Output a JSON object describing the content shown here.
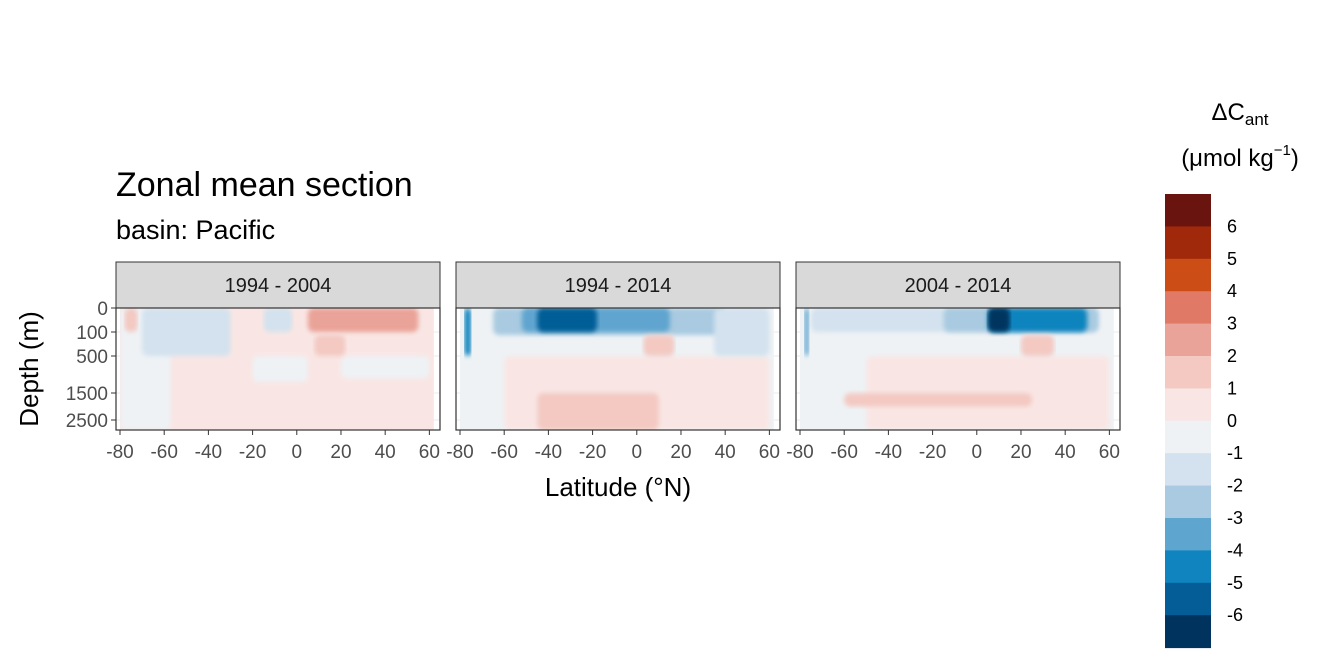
{
  "figure": {
    "title": "Zonal mean section",
    "subtitle": "basin: Pacific"
  },
  "legend": {
    "title_main": "ΔC",
    "title_sub": "ant",
    "units_main": "(μmol kg",
    "units_sup": "−1",
    "units_close": ")",
    "colors": [
      "#69140e",
      "#a1290b",
      "#cc4d16",
      "#e07a66",
      "#eaa398",
      "#f3c9c2",
      "#f9e6e4",
      "#eef2f5",
      "#d3e2ee",
      "#a9cae0",
      "#5ea5cf",
      "#0f84be",
      "#045d96",
      "#00345e"
    ],
    "tick_labels": [
      "6",
      "5",
      "4",
      "3",
      "2",
      "1",
      "0",
      "-1",
      "-2",
      "-3",
      "-4",
      "-5",
      "-6"
    ]
  },
  "chart_data": {
    "type": "heatmap",
    "xlabel": "Latitude (°N)",
    "ylabel": "Depth (m)",
    "xlim": [
      -80,
      63
    ],
    "x_ticks": [
      -80,
      -60,
      -40,
      -20,
      0,
      20,
      40,
      60
    ],
    "y_ticks": [
      0,
      100,
      500,
      1500,
      2500
    ],
    "y_tick_labels": [
      "0",
      "100",
      "500",
      "1500",
      "2500"
    ],
    "y_reversed": true,
    "grid": true,
    "legend_position": "right",
    "panels": [
      {
        "label": "1994 - 2004",
        "regions": [
          {
            "lat": [
              -80,
              62
            ],
            "depth": [
              0,
              2800
            ],
            "value": 0.5
          },
          {
            "lat": [
              -80,
              -57
            ],
            "depth": [
              0,
              2800
            ],
            "value": -0.5
          },
          {
            "lat": [
              -78,
              -72
            ],
            "depth": [
              0,
              100
            ],
            "value": 1.5
          },
          {
            "lat": [
              -70,
              -30
            ],
            "depth": [
              0,
              500
            ],
            "value": -1.5
          },
          {
            "lat": [
              -15,
              -2
            ],
            "depth": [
              0,
              100
            ],
            "value": -1.5
          },
          {
            "lat": [
              -20,
              5
            ],
            "depth": [
              500,
              1200
            ],
            "value": -0.5
          },
          {
            "lat": [
              20,
              60
            ],
            "depth": [
              500,
              1100
            ],
            "value": -0.5
          },
          {
            "lat": [
              5,
              55
            ],
            "depth": [
              0,
              100
            ],
            "value": 2.5
          },
          {
            "lat": [
              8,
              22
            ],
            "depth": [
              150,
              500
            ],
            "value": 1.5
          }
        ]
      },
      {
        "label": "1994 - 2014",
        "regions": [
          {
            "lat": [
              -80,
              62
            ],
            "depth": [
              0,
              2800
            ],
            "value": -0.5
          },
          {
            "lat": [
              -60,
              60
            ],
            "depth": [
              500,
              2800
            ],
            "value": 0.5
          },
          {
            "lat": [
              -45,
              10
            ],
            "depth": [
              1500,
              2800
            ],
            "value": 1.5
          },
          {
            "lat": [
              -65,
              40
            ],
            "depth": [
              0,
              150
            ],
            "value": -2.5
          },
          {
            "lat": [
              -52,
              15
            ],
            "depth": [
              0,
              100
            ],
            "value": -3.5
          },
          {
            "lat": [
              -45,
              -18
            ],
            "depth": [
              0,
              100
            ],
            "value": -5.5
          },
          {
            "lat": [
              -78,
              -75
            ],
            "depth": [
              0,
              500
            ],
            "value": -4.5
          },
          {
            "lat": [
              3,
              17
            ],
            "depth": [
              150,
              500
            ],
            "value": 1.5
          },
          {
            "lat": [
              35,
              60
            ],
            "depth": [
              0,
              500
            ],
            "value": -1.5
          }
        ]
      },
      {
        "label": "2004 - 2014",
        "regions": [
          {
            "lat": [
              -80,
              62
            ],
            "depth": [
              0,
              2800
            ],
            "value": -0.5
          },
          {
            "lat": [
              -50,
              60
            ],
            "depth": [
              500,
              2800
            ],
            "value": 0.5
          },
          {
            "lat": [
              -60,
              25
            ],
            "depth": [
              1500,
              2000
            ],
            "value": 1.5
          },
          {
            "lat": [
              -75,
              55
            ],
            "depth": [
              0,
              100
            ],
            "value": -1.5
          },
          {
            "lat": [
              -15,
              55
            ],
            "depth": [
              0,
              100
            ],
            "value": -2.5
          },
          {
            "lat": [
              5,
              50
            ],
            "depth": [
              0,
              100
            ],
            "value": -4.5
          },
          {
            "lat": [
              5,
              15
            ],
            "depth": [
              0,
              100
            ],
            "value": -6.5
          },
          {
            "lat": [
              20,
              35
            ],
            "depth": [
              150,
              500
            ],
            "value": 1.5
          },
          {
            "lat": [
              -78,
              -76
            ],
            "depth": [
              0,
              500
            ],
            "value": -3.5
          }
        ]
      }
    ]
  }
}
